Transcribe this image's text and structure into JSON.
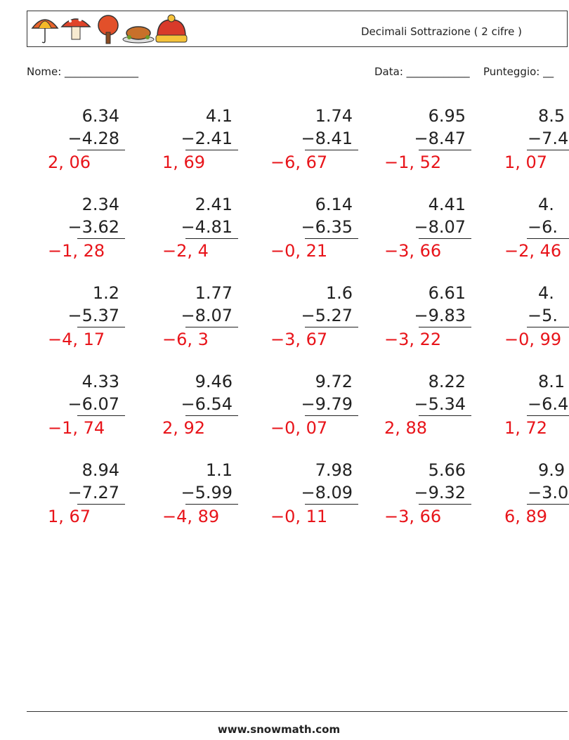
{
  "header": {
    "title": "Decimali Sottrazione ( 2 cifre )"
  },
  "fields": {
    "name": "Nome: ______________",
    "date": "Data: ____________",
    "score": "Punteggio: __"
  },
  "problems": [
    [
      {
        "top": "6.34",
        "bottom": "−4.28",
        "answer": "2, 06"
      },
      {
        "top": "4.1",
        "bottom": "−2.41",
        "answer": "1, 69"
      },
      {
        "top": "1.74",
        "bottom": "−8.41",
        "answer": "−6, 67"
      },
      {
        "top": "6.95",
        "bottom": "−8.47",
        "answer": "−1, 52"
      },
      {
        "top": "8.5",
        "bottom": "−7.4",
        "answer": "1, 07"
      }
    ],
    [
      {
        "top": "2.34",
        "bottom": "−3.62",
        "answer": "−1, 28"
      },
      {
        "top": "2.41",
        "bottom": "−4.81",
        "answer": "−2, 4"
      },
      {
        "top": "6.14",
        "bottom": "−6.35",
        "answer": "−0, 21"
      },
      {
        "top": "4.41",
        "bottom": "−8.07",
        "answer": "−3, 66"
      },
      {
        "top": "4.",
        "bottom": "−6.",
        "answer": "−2, 46"
      }
    ],
    [
      {
        "top": "1.2",
        "bottom": "−5.37",
        "answer": "−4, 17"
      },
      {
        "top": "1.77",
        "bottom": "−8.07",
        "answer": "−6, 3"
      },
      {
        "top": "1.6",
        "bottom": "−5.27",
        "answer": "−3, 67"
      },
      {
        "top": "6.61",
        "bottom": "−9.83",
        "answer": "−3, 22"
      },
      {
        "top": "4.",
        "bottom": "−5.",
        "answer": "−0, 99"
      }
    ],
    [
      {
        "top": "4.33",
        "bottom": "−6.07",
        "answer": "−1, 74"
      },
      {
        "top": "9.46",
        "bottom": "−6.54",
        "answer": "2, 92"
      },
      {
        "top": "9.72",
        "bottom": "−9.79",
        "answer": "−0, 07"
      },
      {
        "top": "8.22",
        "bottom": "−5.34",
        "answer": "2, 88"
      },
      {
        "top": "8.1",
        "bottom": "−6.4",
        "answer": "1, 72"
      }
    ],
    [
      {
        "top": "8.94",
        "bottom": "−7.27",
        "answer": "1, 67"
      },
      {
        "top": "1.1",
        "bottom": "−5.99",
        "answer": "−4, 89"
      },
      {
        "top": "7.98",
        "bottom": "−8.09",
        "answer": "−0, 11"
      },
      {
        "top": "5.66",
        "bottom": "−9.32",
        "answer": "−3, 66"
      },
      {
        "top": "9.9",
        "bottom": "−3.0",
        "answer": "6, 89"
      }
    ]
  ],
  "footer": "www.snowmath.com"
}
